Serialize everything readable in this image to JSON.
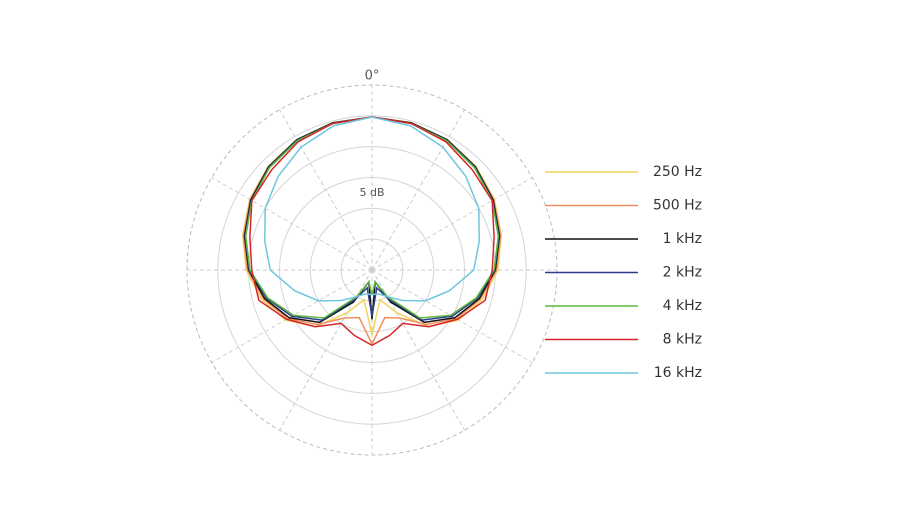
{
  "chart_data": {
    "type": "polar",
    "angle_label": "0°",
    "scale_label": "5 dB",
    "rlim": [
      -30,
      0
    ],
    "rticks": [
      -30,
      -25,
      -20,
      -15,
      -10,
      -5,
      0
    ],
    "thetaticks": [
      0,
      30,
      60,
      90,
      120,
      150,
      180,
      210,
      240,
      270,
      300,
      330
    ],
    "theta": [
      0,
      15,
      30,
      45,
      60,
      75,
      90,
      105,
      120,
      135,
      150,
      165,
      180,
      195,
      210,
      225,
      240,
      255,
      270,
      285,
      300,
      315,
      330,
      345
    ],
    "series": [
      {
        "name": "250 Hz",
        "color": "#f2d45c",
        "values": [
          -5.2,
          -5.3,
          -5.6,
          -6.2,
          -7.1,
          -8.3,
          -9.6,
          -11.5,
          -13.8,
          -17,
          -22,
          -25,
          -19.5,
          -25,
          -22,
          -17,
          -13.8,
          -11.5,
          -9.6,
          -8.3,
          -7.1,
          -6.2,
          -5.6,
          -5.3
        ]
      },
      {
        "name": "500 Hz",
        "color": "#f0915a",
        "values": [
          -5.2,
          -5.3,
          -5.7,
          -6.3,
          -7.2,
          -8.4,
          -9.8,
          -11.8,
          -14.2,
          -17.5,
          -21,
          -22,
          -18,
          -22,
          -21,
          -17.5,
          -14.2,
          -11.8,
          -9.8,
          -8.4,
          -7.2,
          -6.3,
          -5.7,
          -5.3
        ]
      },
      {
        "name": "1 kHz",
        "color": "#111111",
        "values": [
          -5.2,
          -5.3,
          -5.6,
          -6.3,
          -7.3,
          -8.6,
          -10,
          -12,
          -14.5,
          -18,
          -24,
          -28,
          -22,
          -28,
          -24,
          -18,
          -14.5,
          -12,
          -10,
          -8.6,
          -7.3,
          -6.3,
          -5.6,
          -5.3
        ]
      },
      {
        "name": "2 kHz",
        "color": "#2b3f8c",
        "values": [
          -5.2,
          -5.4,
          -5.7,
          -6.4,
          -7.4,
          -8.7,
          -10.1,
          -12.3,
          -15,
          -18.5,
          -24.5,
          -27,
          -22.5,
          -27,
          -24.5,
          -18.5,
          -15,
          -12.3,
          -10.1,
          -8.7,
          -7.4,
          -6.4,
          -5.7,
          -5.4
        ]
      },
      {
        "name": "4 kHz",
        "color": "#5cb83c",
        "values": [
          -5.2,
          -5.4,
          -5.8,
          -6.5,
          -7.5,
          -8.8,
          -10.2,
          -12.5,
          -15.3,
          -19,
          -25,
          -28,
          -26,
          -28,
          -25,
          -19,
          -15.3,
          -12.5,
          -10.2,
          -8.8,
          -7.5,
          -6.5,
          -5.8,
          -5.4
        ]
      },
      {
        "name": "8 kHz",
        "color": "#d7262b",
        "values": [
          -5.2,
          -5.4,
          -6,
          -7,
          -7.5,
          -9.5,
          -10.5,
          -11,
          -14,
          -17,
          -20,
          -19,
          -17.8,
          -19,
          -20,
          -17,
          -14,
          -11,
          -10.5,
          -9.5,
          -7.5,
          -7,
          -6,
          -5.4
        ]
      },
      {
        "name": "16 kHz",
        "color": "#6ec6e0",
        "values": [
          -5.2,
          -5.8,
          -7,
          -8.5,
          -10,
          -12,
          -13.5,
          -17,
          -20,
          -23,
          -25,
          -26,
          -26,
          -26,
          -25,
          -23,
          -20,
          -17,
          -13.5,
          -12,
          -10,
          -8.5,
          -7,
          -5.8
        ]
      }
    ]
  }
}
